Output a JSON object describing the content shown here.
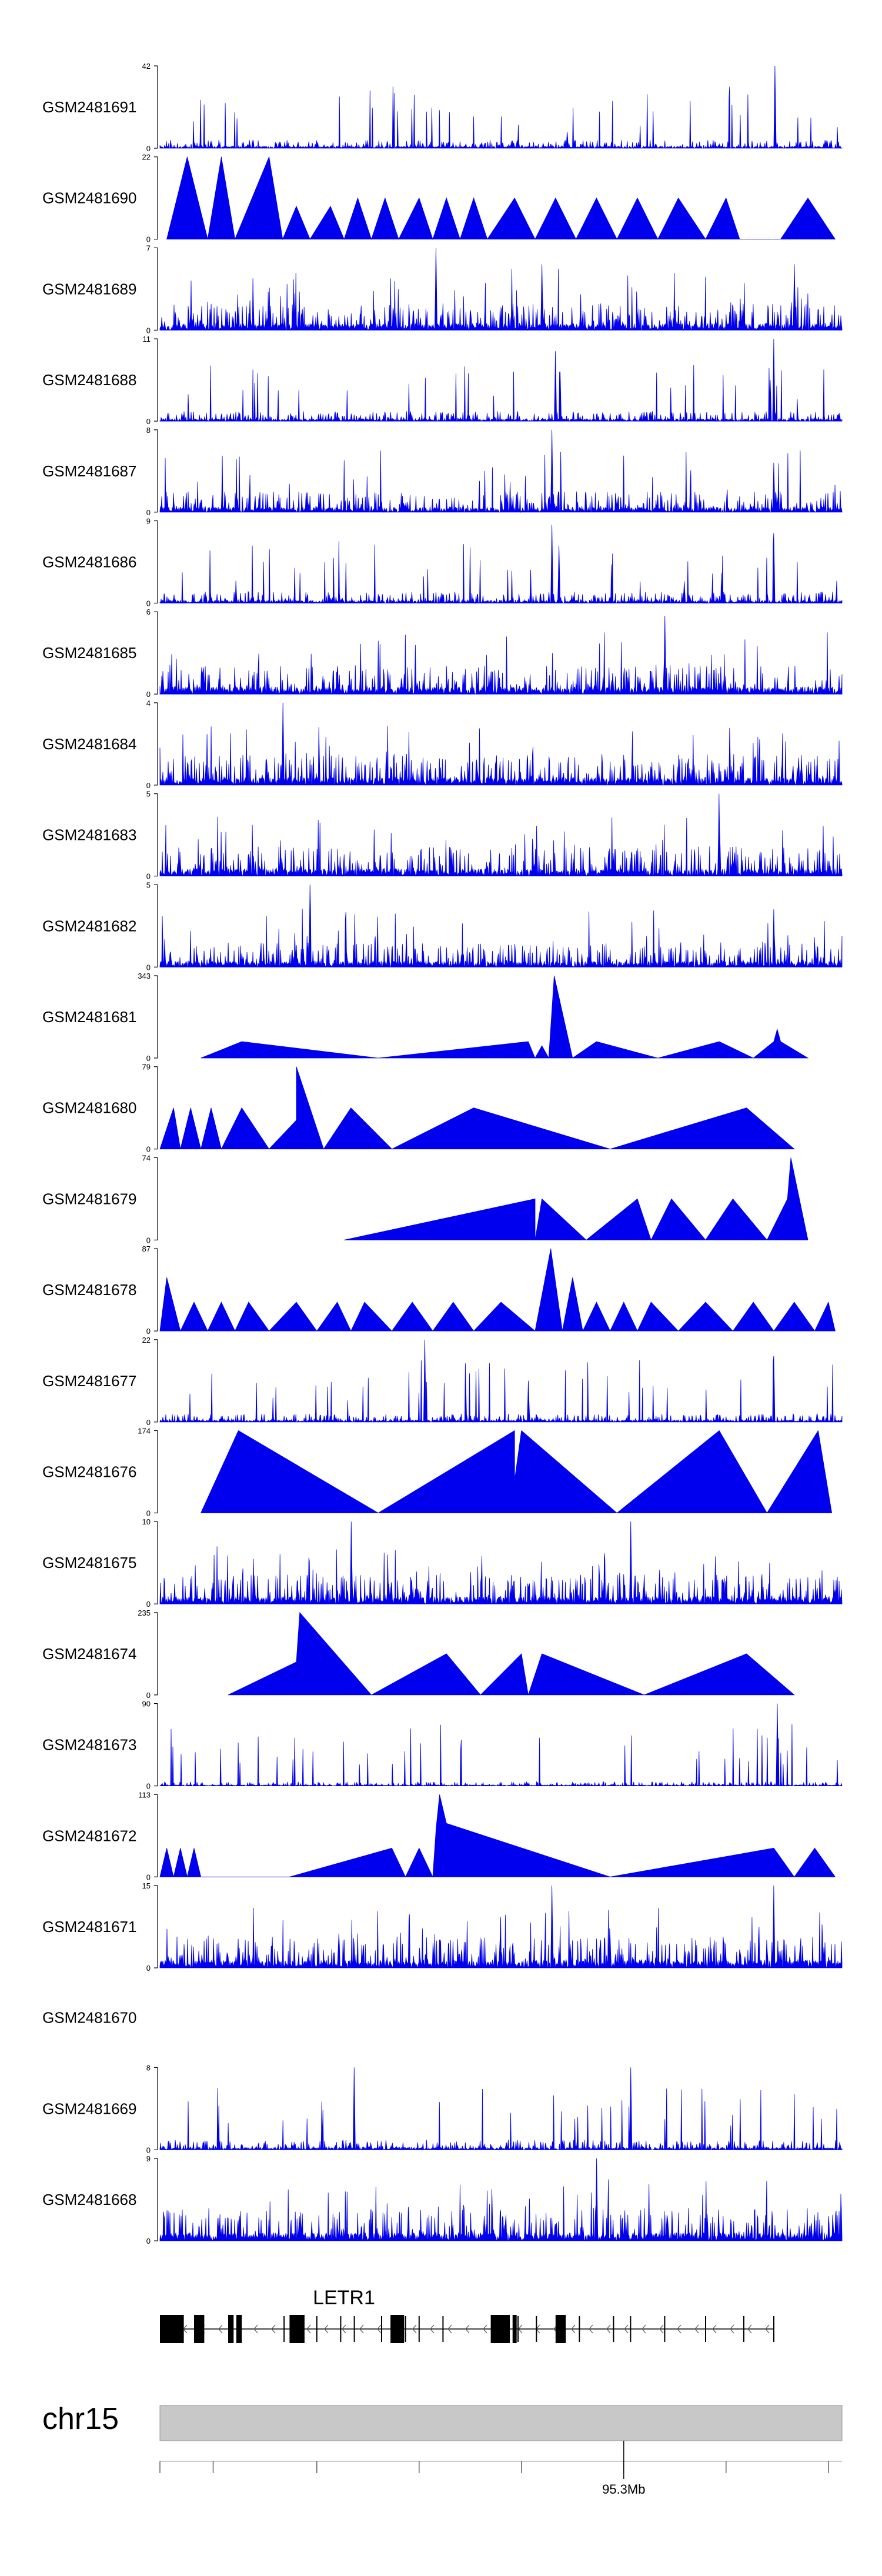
{
  "chart_data": {
    "type": "area",
    "title": "",
    "fill_color": "#0000EE",
    "ideogram_color": "#C8C8C8",
    "tracks": [
      {
        "name": "GSM2481691",
        "ymax": 42,
        "style": "dense",
        "seed": 11,
        "density": 0.1,
        "peaks": [
          {
            "x": 0.902,
            "h": 1.0
          },
          {
            "x": 0.597,
            "h": 0.2
          }
        ]
      },
      {
        "name": "GSM2481690",
        "ymax": 22,
        "style": "sparse",
        "vertices": [
          [
            0.01,
            0
          ],
          [
            0.04,
            1.0
          ],
          [
            0.055,
            0.5
          ],
          [
            0.07,
            0
          ],
          [
            0.09,
            1.0
          ],
          [
            0.11,
            0
          ],
          [
            0.13,
            0.4
          ],
          [
            0.16,
            1.0
          ],
          [
            0.18,
            0
          ],
          [
            0.2,
            0.4
          ],
          [
            0.22,
            0
          ],
          [
            0.25,
            0.4
          ],
          [
            0.27,
            0
          ],
          [
            0.29,
            0.5
          ],
          [
            0.31,
            0
          ],
          [
            0.33,
            0.5
          ],
          [
            0.35,
            0
          ],
          [
            0.38,
            0.5
          ],
          [
            0.4,
            0
          ],
          [
            0.42,
            0.5
          ],
          [
            0.44,
            0
          ],
          [
            0.46,
            0.5
          ],
          [
            0.48,
            0
          ],
          [
            0.52,
            0.5
          ],
          [
            0.55,
            0
          ],
          [
            0.58,
            0.5
          ],
          [
            0.61,
            0
          ],
          [
            0.64,
            0.5
          ],
          [
            0.67,
            0
          ],
          [
            0.7,
            0.5
          ],
          [
            0.73,
            0
          ],
          [
            0.76,
            0.5
          ],
          [
            0.8,
            0
          ],
          [
            0.83,
            0.5
          ],
          [
            0.85,
            0
          ],
          [
            0.91,
            0
          ],
          [
            0.95,
            0.5
          ],
          [
            0.99,
            0
          ]
        ]
      },
      {
        "name": "GSM2481689",
        "ymax": 7,
        "style": "dense",
        "seed": 23,
        "density": 0.32,
        "peaks": [
          {
            "x": 0.405,
            "h": 1.0
          },
          {
            "x": 0.56,
            "h": 0.8
          },
          {
            "x": 0.93,
            "h": 0.8
          }
        ]
      },
      {
        "name": "GSM2481688",
        "ymax": 11,
        "style": "dense",
        "seed": 31,
        "density": 0.12,
        "peaks": [
          {
            "x": 0.58,
            "h": 0.85
          },
          {
            "x": 0.587,
            "h": 0.6
          },
          {
            "x": 0.9,
            "h": 1.0
          },
          {
            "x": 0.895,
            "h": 0.5
          }
        ]
      },
      {
        "name": "GSM2481687",
        "ymax": 8,
        "style": "dense",
        "seed": 37,
        "density": 0.25,
        "peaks": [
          {
            "x": 0.575,
            "h": 1.0
          },
          {
            "x": 0.9,
            "h": 0.6
          }
        ]
      },
      {
        "name": "GSM2481686",
        "ymax": 9,
        "style": "dense",
        "seed": 41,
        "density": 0.14,
        "peaks": [
          {
            "x": 0.575,
            "h": 0.95
          },
          {
            "x": 0.585,
            "h": 0.7
          },
          {
            "x": 0.9,
            "h": 0.85
          }
        ]
      },
      {
        "name": "GSM2481685",
        "ymax": 6,
        "style": "dense",
        "seed": 43,
        "density": 0.36,
        "peaks": [
          {
            "x": 0.74,
            "h": 0.95
          }
        ]
      },
      {
        "name": "GSM2481684",
        "ymax": 4,
        "style": "dense",
        "seed": 47,
        "density": 0.38,
        "peaks": [
          {
            "x": 0.18,
            "h": 1.0
          }
        ]
      },
      {
        "name": "GSM2481683",
        "ymax": 5,
        "style": "dense",
        "seed": 53,
        "density": 0.36,
        "peaks": [
          {
            "x": 0.82,
            "h": 1.0
          }
        ]
      },
      {
        "name": "GSM2481682",
        "ymax": 5,
        "style": "dense",
        "seed": 59,
        "density": 0.3,
        "peaks": [
          {
            "x": 0.22,
            "h": 1.0
          },
          {
            "x": 0.9,
            "h": 0.7
          }
        ]
      },
      {
        "name": "GSM2481681",
        "ymax": 343,
        "style": "sparse",
        "vertices": [
          [
            0.06,
            0
          ],
          [
            0.12,
            0.2
          ],
          [
            0.32,
            0
          ],
          [
            0.54,
            0.2
          ],
          [
            0.55,
            0
          ],
          [
            0.56,
            0.15
          ],
          [
            0.57,
            0
          ],
          [
            0.578,
            1.0
          ],
          [
            0.605,
            0
          ],
          [
            0.64,
            0.2
          ],
          [
            0.73,
            0
          ],
          [
            0.82,
            0.2
          ],
          [
            0.87,
            0
          ],
          [
            0.9,
            0.2
          ],
          [
            0.905,
            0.35
          ],
          [
            0.91,
            0.2
          ],
          [
            0.95,
            0
          ]
        ]
      },
      {
        "name": "GSM2481680",
        "ymax": 79,
        "style": "sparse",
        "vertices": [
          [
            0.0,
            0
          ],
          [
            0.02,
            0.5
          ],
          [
            0.03,
            0
          ],
          [
            0.045,
            0.5
          ],
          [
            0.06,
            0
          ],
          [
            0.075,
            0.5
          ],
          [
            0.09,
            0
          ],
          [
            0.12,
            0.5
          ],
          [
            0.16,
            0
          ],
          [
            0.2,
            0.35
          ],
          [
            0.2,
            1.0
          ],
          [
            0.24,
            0
          ],
          [
            0.28,
            0.5
          ],
          [
            0.34,
            0
          ],
          [
            0.46,
            0.5
          ],
          [
            0.66,
            0
          ],
          [
            0.86,
            0.5
          ],
          [
            0.93,
            0
          ]
        ]
      },
      {
        "name": "GSM2481679",
        "ymax": 74,
        "style": "sparse",
        "vertices": [
          [
            0.27,
            0
          ],
          [
            0.55,
            0.5
          ],
          [
            0.55,
            0
          ],
          [
            0.56,
            0.5
          ],
          [
            0.625,
            0
          ],
          [
            0.7,
            0.5
          ],
          [
            0.72,
            0
          ],
          [
            0.75,
            0.5
          ],
          [
            0.8,
            0
          ],
          [
            0.84,
            0.5
          ],
          [
            0.89,
            0
          ],
          [
            0.92,
            0.5
          ],
          [
            0.925,
            1.0
          ],
          [
            0.95,
            0
          ]
        ]
      },
      {
        "name": "GSM2481678",
        "ymax": 87,
        "style": "sparse",
        "vertices": [
          [
            0.0,
            0
          ],
          [
            0.01,
            0.65
          ],
          [
            0.03,
            0
          ],
          [
            0.05,
            0.35
          ],
          [
            0.07,
            0
          ],
          [
            0.09,
            0.35
          ],
          [
            0.11,
            0
          ],
          [
            0.13,
            0.35
          ],
          [
            0.16,
            0
          ],
          [
            0.2,
            0.35
          ],
          [
            0.23,
            0
          ],
          [
            0.26,
            0.35
          ],
          [
            0.28,
            0
          ],
          [
            0.3,
            0.35
          ],
          [
            0.34,
            0
          ],
          [
            0.37,
            0.35
          ],
          [
            0.4,
            0
          ],
          [
            0.43,
            0.35
          ],
          [
            0.46,
            0
          ],
          [
            0.5,
            0.35
          ],
          [
            0.55,
            0
          ],
          [
            0.573,
            1.0
          ],
          [
            0.59,
            0
          ],
          [
            0.605,
            0.65
          ],
          [
            0.62,
            0
          ],
          [
            0.64,
            0.35
          ],
          [
            0.66,
            0
          ],
          [
            0.68,
            0.35
          ],
          [
            0.7,
            0
          ],
          [
            0.72,
            0.35
          ],
          [
            0.76,
            0
          ],
          [
            0.8,
            0.35
          ],
          [
            0.84,
            0
          ],
          [
            0.87,
            0.35
          ],
          [
            0.9,
            0
          ],
          [
            0.93,
            0.35
          ],
          [
            0.96,
            0
          ],
          [
            0.98,
            0.35
          ],
          [
            0.99,
            0
          ]
        ]
      },
      {
        "name": "GSM2481677",
        "ymax": 22,
        "style": "dense",
        "seed": 61,
        "density": 0.1,
        "peaks": [
          {
            "x": 0.388,
            "h": 1.0
          },
          {
            "x": 0.54,
            "h": 0.5
          },
          {
            "x": 0.9,
            "h": 0.8
          }
        ]
      },
      {
        "name": "GSM2481676",
        "ymax": 174,
        "style": "sparse",
        "vertices": [
          [
            0.06,
            0
          ],
          [
            0.115,
            1.0
          ],
          [
            0.32,
            0
          ],
          [
            0.52,
            1.0
          ],
          [
            0.52,
            0.4
          ],
          [
            0.53,
            1.0
          ],
          [
            0.67,
            0
          ],
          [
            0.82,
            1.0
          ],
          [
            0.89,
            0
          ],
          [
            0.965,
            1.0
          ],
          [
            0.985,
            0
          ]
        ]
      },
      {
        "name": "GSM2481675",
        "ymax": 10,
        "style": "dense",
        "seed": 67,
        "density": 0.36,
        "peaks": [
          {
            "x": 0.28,
            "h": 1.0
          },
          {
            "x": 0.69,
            "h": 1.0
          }
        ]
      },
      {
        "name": "GSM2481674",
        "ymax": 235,
        "style": "sparse",
        "vertices": [
          [
            0.1,
            0
          ],
          [
            0.2,
            0.4
          ],
          [
            0.205,
            1.0
          ],
          [
            0.31,
            0
          ],
          [
            0.42,
            0.5
          ],
          [
            0.47,
            0
          ],
          [
            0.53,
            0.5
          ],
          [
            0.54,
            0
          ],
          [
            0.56,
            0.5
          ],
          [
            0.71,
            0
          ],
          [
            0.86,
            0.5
          ],
          [
            0.93,
            0
          ]
        ]
      },
      {
        "name": "GSM2481673",
        "ymax": 90,
        "style": "dense",
        "seed": 71,
        "density": 0.05,
        "peaks": [
          {
            "x": 0.905,
            "h": 1.0
          }
        ]
      },
      {
        "name": "GSM2481672",
        "ymax": 113,
        "style": "sparse",
        "vertices": [
          [
            0.0,
            0
          ],
          [
            0.01,
            0.35
          ],
          [
            0.02,
            0
          ],
          [
            0.03,
            0.35
          ],
          [
            0.04,
            0
          ],
          [
            0.05,
            0.35
          ],
          [
            0.06,
            0
          ],
          [
            0.19,
            0
          ],
          [
            0.34,
            0.35
          ],
          [
            0.36,
            0
          ],
          [
            0.38,
            0.35
          ],
          [
            0.4,
            0
          ],
          [
            0.405,
            0.6
          ],
          [
            0.41,
            1.0
          ],
          [
            0.42,
            0.65
          ],
          [
            0.66,
            0
          ],
          [
            0.9,
            0.35
          ],
          [
            0.93,
            0
          ],
          [
            0.96,
            0.35
          ],
          [
            0.99,
            0
          ]
        ]
      },
      {
        "name": "GSM2481671",
        "ymax": 15,
        "style": "dense",
        "seed": 73,
        "density": 0.38,
        "peaks": [
          {
            "x": 0.575,
            "h": 1.0
          },
          {
            "x": 0.9,
            "h": 1.0
          }
        ]
      },
      {
        "name": "GSM2481670",
        "ymax": null,
        "style": "empty"
      },
      {
        "name": "GSM2481669",
        "ymax": 8,
        "style": "dense",
        "seed": 79,
        "density": 0.12,
        "peaks": [
          {
            "x": 0.285,
            "h": 1.0
          },
          {
            "x": 0.69,
            "h": 1.0
          }
        ]
      },
      {
        "name": "GSM2481668",
        "ymax": 9,
        "style": "dense",
        "seed": 83,
        "density": 0.4,
        "peaks": [
          {
            "x": 0.64,
            "h": 1.0
          }
        ]
      }
    ],
    "gene": {
      "name": "LETR1",
      "range": [
        0.0,
        0.9
      ],
      "exons": [
        [
          0.0,
          0.035
        ],
        [
          0.05,
          0.065
        ],
        [
          0.1,
          0.108
        ],
        [
          0.112,
          0.12
        ],
        [
          0.19,
          0.212
        ],
        [
          0.338,
          0.358
        ],
        [
          0.485,
          0.513
        ],
        [
          0.517,
          0.523
        ],
        [
          0.58,
          0.595
        ]
      ],
      "markers": [
        0.182,
        0.23,
        0.265,
        0.285,
        0.325,
        0.36,
        0.38,
        0.415,
        0.525,
        0.552,
        0.615,
        0.665,
        0.69,
        0.74,
        0.8,
        0.856,
        0.9
      ]
    },
    "chromosome": {
      "name": "chr15",
      "tick_positions": [
        0.0,
        0.078,
        0.23,
        0.38,
        0.53,
        0.68,
        0.83,
        0.98
      ],
      "labeled_tick": {
        "pos": 0.68,
        "label": "95.3Mb"
      }
    }
  }
}
